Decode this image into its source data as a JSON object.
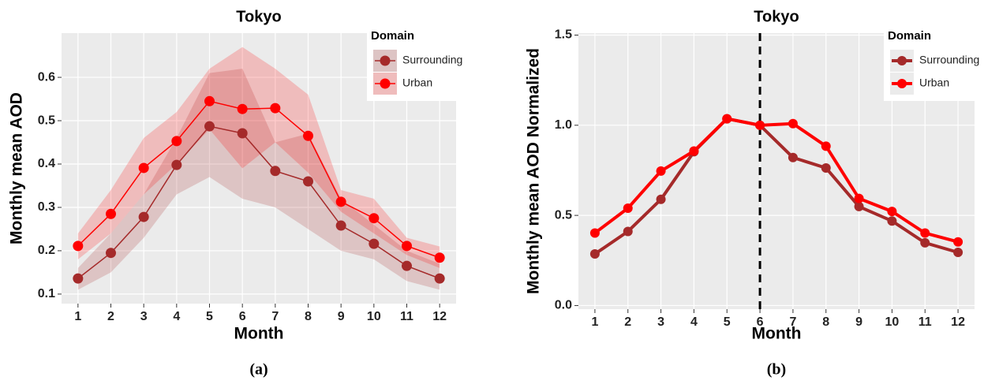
{
  "chart_data": [
    {
      "type": "line",
      "title": "Tokyo",
      "x_label": "Month",
      "y_label": "Monthly mean AOD",
      "caption": "(a)",
      "legend_title": "Domain",
      "legend": "top-right",
      "grid": true,
      "x": [
        1,
        2,
        3,
        4,
        5,
        6,
        7,
        8,
        9,
        10,
        11,
        12
      ],
      "xlim": [
        0.5,
        12.5
      ],
      "xticks": [
        1,
        2,
        3,
        4,
        5,
        6,
        7,
        8,
        9,
        10,
        11,
        12
      ],
      "ylim": [
        0.078,
        0.702
      ],
      "yticks": [
        0.1,
        0.2,
        0.3,
        0.4,
        0.5,
        0.6
      ],
      "series": [
        {
          "name": "Surrounding",
          "color": "#a52a2a",
          "values": [
            0.136,
            0.195,
            0.278,
            0.398,
            0.487,
            0.471,
            0.384,
            0.36,
            0.258,
            0.216,
            0.165,
            0.136
          ],
          "lower": [
            0.11,
            0.15,
            0.23,
            0.33,
            0.37,
            0.32,
            0.3,
            0.25,
            0.2,
            0.18,
            0.13,
            0.11
          ],
          "upper": [
            0.16,
            0.24,
            0.33,
            0.46,
            0.61,
            0.62,
            0.45,
            0.47,
            0.32,
            0.26,
            0.2,
            0.17
          ]
        },
        {
          "name": "Urban",
          "color": "#ff0000",
          "values": [
            0.211,
            0.285,
            0.391,
            0.453,
            0.545,
            0.527,
            0.529,
            0.465,
            0.313,
            0.275,
            0.211,
            0.184
          ],
          "lower": [
            0.18,
            0.24,
            0.33,
            0.4,
            0.48,
            0.39,
            0.45,
            0.38,
            0.29,
            0.24,
            0.19,
            0.16
          ],
          "upper": [
            0.24,
            0.34,
            0.46,
            0.52,
            0.62,
            0.67,
            0.62,
            0.56,
            0.34,
            0.32,
            0.23,
            0.21
          ]
        }
      ]
    },
    {
      "type": "line",
      "title": "Tokyo",
      "x_label": "Month",
      "y_label": "Monthly mean AOD Normalized",
      "caption": "(b)",
      "legend_title": "Domain",
      "legend": "top-right",
      "grid": true,
      "vline": 6,
      "x": [
        1,
        2,
        3,
        4,
        5,
        6,
        7,
        8,
        9,
        10,
        11,
        12
      ],
      "xlim": [
        0.5,
        12.5
      ],
      "xticks": [
        1,
        2,
        3,
        4,
        5,
        6,
        7,
        8,
        9,
        10,
        11,
        12
      ],
      "ylim": [
        -0.02,
        1.511
      ],
      "yticks": [
        {
          "value": 0,
          "label": "0.0"
        },
        0.5,
        {
          "value": 1,
          "label": "1.0"
        },
        1.5
      ],
      "series": [
        {
          "name": "Surrounding",
          "color": "#a52a2a",
          "values": [
            0.286,
            0.411,
            0.589,
            0.853,
            1.036,
            1.0,
            0.821,
            0.763,
            0.549,
            0.469,
            0.348,
            0.295
          ]
        },
        {
          "name": "Urban",
          "color": "#ff0000",
          "values": [
            0.402,
            0.54,
            0.746,
            0.857,
            1.036,
            1.0,
            1.009,
            0.884,
            0.594,
            0.522,
            0.402,
            0.353
          ]
        }
      ]
    }
  ]
}
